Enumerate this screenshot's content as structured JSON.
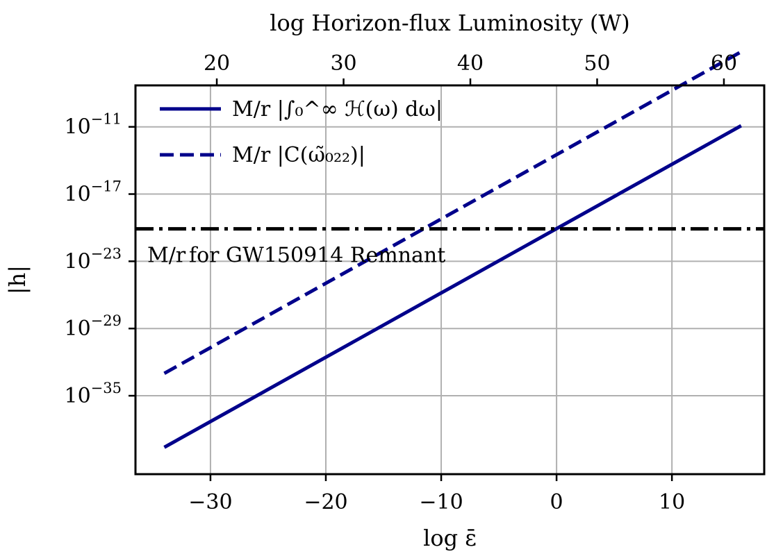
{
  "chart_data": {
    "type": "line",
    "xlabel": "log ε̄",
    "ylabel": "|h|",
    "top_xlabel": "log Horizon-flux Luminosity (W)",
    "xlim": [
      -36.5,
      18
    ],
    "ylim_log10": [
      -42,
      -7.3
    ],
    "y_scale": "log",
    "grid": true,
    "legend_position": "top-left",
    "x_ticks": [
      -30,
      -20,
      -10,
      0,
      10
    ],
    "x_tick_labels": [
      "−30",
      "−20",
      "−10",
      "0",
      "10"
    ],
    "y_ticks_log10": [
      -35,
      -29,
      -23,
      -17,
      -11
    ],
    "y_tick_labels": [
      {
        "base": "10",
        "exp": "−35"
      },
      {
        "base": "10",
        "exp": "−29"
      },
      {
        "base": "10",
        "exp": "−23"
      },
      {
        "base": "10",
        "exp": "−17"
      },
      {
        "base": "10",
        "exp": "−11"
      }
    ],
    "top_x_ticks": [
      20,
      30,
      40,
      50,
      60
    ],
    "top_x_tick_labels": [
      "20",
      "30",
      "40",
      "50",
      "60"
    ],
    "top_axis_map": {
      "slope": 0.91,
      "intercept": 46.8
    },
    "series": [
      {
        "name": "M/r |∫₀^∞ ℋ(ω) dω|",
        "style": "solid",
        "color": "#00008b",
        "x": [
          -34,
          16
        ],
        "y_log10": [
          -39.6,
          -10.9
        ]
      },
      {
        "name": "M/r |C(ω̃₀₂₂)|",
        "style": "dashed",
        "color": "#00008b",
        "x": [
          -34,
          16
        ],
        "y_log10": [
          -33.0,
          -4.3
        ]
      }
    ],
    "reference_line": {
      "label": "for GW150914 Remnant",
      "label_prefix": "M/r",
      "y_log10": -20.1,
      "style": "dashdot",
      "color": "#000000"
    }
  }
}
